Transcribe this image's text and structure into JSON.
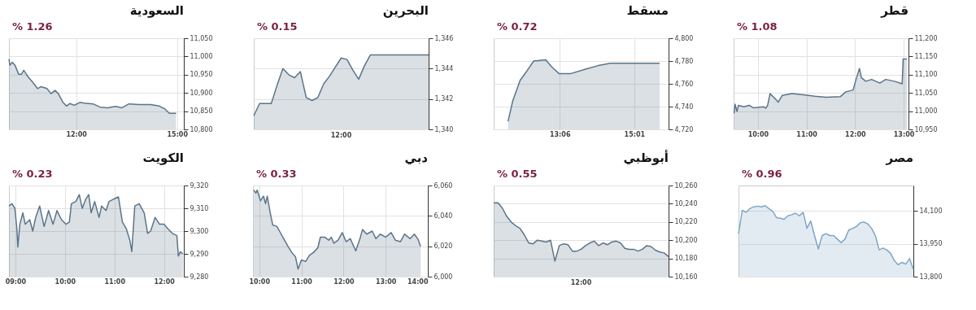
{
  "chart_data": [
    {
      "type": "area",
      "title": "السعودية",
      "annotations": [
        "% 1.26"
      ],
      "grid": true,
      "ylim": [
        10800,
        11050
      ],
      "yticks": [
        {
          "value": 10800,
          "label": "10,800"
        },
        {
          "value": 10850,
          "label": "10,850"
        },
        {
          "value": 10900,
          "label": "10,900"
        },
        {
          "value": 10950,
          "label": "10,950"
        },
        {
          "value": 11000,
          "label": "11,000"
        },
        {
          "value": 11050,
          "label": "11,050"
        }
      ],
      "xlim": [
        10,
        15.2
      ],
      "xticks": [
        {
          "value": 12,
          "label": "12:00"
        },
        {
          "value": 15,
          "label": "15:00"
        }
      ],
      "x": [
        10.0,
        10.03,
        10.1,
        10.18,
        10.29,
        10.37,
        10.44,
        10.57,
        10.7,
        10.85,
        10.95,
        11.13,
        11.25,
        11.37,
        11.47,
        11.6,
        11.71,
        11.81,
        11.94,
        12.11,
        12.24,
        12.5,
        12.71,
        12.93,
        13.18,
        13.35,
        13.57,
        13.87,
        14.21,
        14.47,
        14.64,
        14.77,
        14.97
      ],
      "series": [
        {
          "color": "#5b7489",
          "values": [
            10993,
            10976,
            10984,
            10976,
            10951,
            10951,
            10962,
            10944,
            10930,
            10912,
            10917,
            10912,
            10898,
            10907,
            10898,
            10875,
            10864,
            10871,
            10866,
            10874,
            10872,
            10870,
            10861,
            10859,
            10863,
            10859,
            10870,
            10868,
            10868,
            10864,
            10856,
            10844,
            10844
          ]
        }
      ]
    },
    {
      "type": "area",
      "title": "البحرين",
      "annotations": [
        "% 0.15",
        "12:00"
      ],
      "grid": "y",
      "ylim": [
        1340,
        1346
      ],
      "yticks": [
        {
          "value": 1340,
          "label": "1,340"
        },
        {
          "value": 1342,
          "label": "1,342"
        },
        {
          "value": 1344,
          "label": "1,344"
        },
        {
          "value": 1346,
          "label": "1,346"
        }
      ],
      "categories": [
        null,
        null,
        null,
        null,
        null,
        null,
        null,
        null,
        null,
        null,
        null,
        null,
        null,
        null,
        null,
        null,
        null,
        null,
        null,
        null,
        null,
        null,
        null,
        null,
        null,
        null,
        null,
        null,
        null,
        null,
        null
      ],
      "series": [
        {
          "color": "#5b7489",
          "values": [
            1340.9,
            1341.7,
            1341.7,
            1341.7,
            1342.9,
            1344.0,
            1343.6,
            1343.4,
            1343.8,
            1342.1,
            1341.9,
            1342.1,
            1343.0,
            1343.5,
            1344.1,
            1344.7,
            1344.6,
            1343.9,
            1343.3,
            1344.2,
            1344.9,
            1344.9,
            1344.9,
            1344.9,
            1344.9,
            1344.9,
            1344.9,
            1344.9,
            1344.9,
            1344.9,
            1344.9
          ]
        }
      ]
    },
    {
      "type": "area",
      "title": "مسقط",
      "annotations": [
        "% 0.72"
      ],
      "grid": true,
      "ylim": [
        4720,
        4800
      ],
      "yticks": [
        {
          "value": 4720,
          "label": "4,720"
        },
        {
          "value": 4740,
          "label": "4,740"
        },
        {
          "value": 4760,
          "label": "4,760"
        },
        {
          "value": 4780,
          "label": "4,780"
        },
        {
          "value": 4800,
          "label": "4,800"
        }
      ],
      "xlim": [
        11.4,
        15.9
      ],
      "xticks": [
        {
          "value": 13.1,
          "label": "13:06"
        },
        {
          "value": 15.0167,
          "label": "15:01"
        }
      ],
      "x": [
        11.77,
        11.89,
        12.08,
        12.27,
        12.43,
        12.74,
        12.89,
        13.08,
        13.39,
        13.78,
        14.09,
        14.4,
        15.67
      ],
      "series": [
        {
          "color": "#5b7489",
          "values": [
            4727,
            4745,
            4763,
            4772,
            4780,
            4781,
            4775,
            4769,
            4769,
            4773,
            4776,
            4778,
            4778
          ]
        }
      ]
    },
    {
      "type": "area",
      "title": "قطر",
      "annotations": [
        "% 1.08"
      ],
      "grid": true,
      "ylim": [
        10950,
        11200
      ],
      "yticks": [
        {
          "value": 10950,
          "label": "10,950"
        },
        {
          "value": 11000,
          "label": "11,000"
        },
        {
          "value": 11050,
          "label": "11,050"
        },
        {
          "value": 11100,
          "label": "11,100"
        },
        {
          "value": 11150,
          "label": "11,150"
        },
        {
          "value": 11200,
          "label": "11,200"
        }
      ],
      "xlim": [
        9.5,
        13.1
      ],
      "xticks": [
        {
          "value": 10,
          "label": "10:00"
        },
        {
          "value": 11,
          "label": "11:00"
        },
        {
          "value": 12,
          "label": "12:00"
        },
        {
          "value": 13,
          "label": "13:00"
        }
      ],
      "x": [
        9.51,
        9.53,
        9.57,
        9.6,
        9.71,
        9.82,
        9.91,
        10.12,
        10.16,
        10.2,
        10.25,
        10.35,
        10.42,
        10.5,
        10.7,
        10.94,
        11.17,
        11.4,
        11.7,
        11.81,
        11.96,
        12.02,
        12.09,
        12.13,
        12.22,
        12.34,
        12.51,
        12.63,
        12.81,
        12.97,
        12.99,
        13.07
      ],
      "series": [
        {
          "color": "#5b7489",
          "values": [
            10994,
            11019,
            10999,
            11016,
            11012,
            11016,
            11009,
            11012,
            11008,
            11016,
            11048,
            11035,
            11025,
            11043,
            11048,
            11045,
            11041,
            11038,
            11040,
            11053,
            11058,
            11087,
            11117,
            11092,
            11082,
            11087,
            11077,
            11087,
            11082,
            11075,
            11143,
            11143
          ]
        }
      ]
    },
    {
      "type": "area",
      "title": "الكويت",
      "annotations": [
        "% 0.23"
      ],
      "grid": true,
      "ylim": [
        9280,
        9320
      ],
      "yticks": [
        {
          "value": 9280,
          "label": "9,280"
        },
        {
          "value": 9290,
          "label": "9,290"
        },
        {
          "value": 9300,
          "label": "9,300"
        },
        {
          "value": 9310,
          "label": "9,310"
        },
        {
          "value": 9320,
          "label": "9,320"
        }
      ],
      "xlim": [
        8.87,
        12.4
      ],
      "xticks": [
        {
          "value": 9,
          "label": "09:00"
        },
        {
          "value": 10,
          "label": "10:00"
        },
        {
          "value": 11,
          "label": "11:00"
        },
        {
          "value": 12,
          "label": "12:00"
        }
      ],
      "x": [
        8.87,
        8.93,
        8.99,
        9.03,
        9.05,
        9.09,
        9.15,
        9.2,
        9.29,
        9.35,
        9.41,
        9.49,
        9.58,
        9.67,
        9.76,
        9.84,
        9.93,
        10.02,
        10.09,
        10.13,
        10.22,
        10.29,
        10.35,
        10.42,
        10.48,
        10.53,
        10.6,
        10.69,
        10.74,
        10.83,
        10.89,
        10.98,
        11.08,
        11.16,
        11.24,
        11.31,
        11.35,
        11.41,
        11.5,
        11.6,
        11.67,
        11.73,
        11.82,
        11.91,
        12.0,
        12.08,
        12.17,
        12.26,
        12.29,
        12.33,
        12.38
      ],
      "series": [
        {
          "color": "#5b7489",
          "values": [
            9311,
            9312,
            9310,
            9301,
            9293,
            9303,
            9308,
            9303,
            9305,
            9300,
            9306,
            9311,
            9302,
            9309,
            9303,
            9309,
            9305,
            9303,
            9304,
            9312,
            9313,
            9316,
            9310,
            9314,
            9316,
            9308,
            9313,
            9306,
            9311,
            9309,
            9313,
            9314,
            9315,
            9304,
            9301,
            9296,
            9291,
            9311,
            9312,
            9308,
            9299,
            9300,
            9306,
            9303,
            9303,
            9301,
            9299,
            9298,
            9289,
            9291,
            9290
          ]
        }
      ]
    },
    {
      "type": "area",
      "title": "دبي",
      "annotations": [
        "% 0.33"
      ],
      "grid": true,
      "ylim": [
        6000,
        6060
      ],
      "yticks": [
        {
          "value": 6000,
          "label": "6,000"
        },
        {
          "value": 6020,
          "label": "6,020"
        },
        {
          "value": 6040,
          "label": "6,040"
        },
        {
          "value": 6060,
          "label": "6,060"
        }
      ],
      "xlim": [
        9.85,
        14.0
      ],
      "xticks": [
        {
          "value": 10,
          "label": "10:00"
        },
        {
          "value": 11,
          "label": "11:00"
        },
        {
          "value": 12,
          "label": "12:00"
        },
        {
          "value": 13,
          "label": "13:00"
        },
        {
          "value": 14,
          "label": "14:00"
        }
      ],
      "x": [
        9.87,
        9.92,
        9.95,
        10.03,
        10.1,
        10.15,
        10.19,
        10.26,
        10.32,
        10.42,
        10.48,
        10.58,
        10.68,
        10.77,
        10.86,
        10.92,
        11.0,
        11.1,
        11.19,
        11.29,
        11.39,
        11.45,
        11.55,
        11.65,
        11.71,
        11.77,
        11.87,
        11.97,
        12.06,
        12.16,
        12.29,
        12.39,
        12.45,
        12.55,
        12.68,
        12.77,
        12.87,
        13.0,
        13.13,
        13.23,
        13.35,
        13.45,
        13.58,
        13.68,
        13.76,
        13.83
      ],
      "series": [
        {
          "color": "#5b7489",
          "values": [
            6057,
            6055,
            6057,
            6050,
            6053,
            6048,
            6053,
            6042,
            6034,
            6033,
            6030,
            6025,
            6020,
            6016,
            6013,
            6005,
            6011,
            6010,
            6014,
            6016,
            6019,
            6026,
            6026,
            6024,
            6026,
            6022,
            6024,
            6029,
            6023,
            6025,
            6017,
            6025,
            6031,
            6028,
            6030,
            6025,
            6028,
            6026,
            6029,
            6024,
            6023,
            6028,
            6025,
            6028,
            6025,
            6020
          ]
        }
      ]
    },
    {
      "type": "area",
      "title": "أبوظبي",
      "annotations": [
        "% 0.55",
        "12:00"
      ],
      "grid": "y",
      "ylim": [
        10160,
        10260
      ],
      "yticks": [
        {
          "value": 10160,
          "label": "10,160"
        },
        {
          "value": 10180,
          "label": "10,180"
        },
        {
          "value": 10200,
          "label": "10,200"
        },
        {
          "value": 10220,
          "label": "10,220"
        },
        {
          "value": 10240,
          "label": "10,240"
        },
        {
          "value": 10260,
          "label": "10,260"
        }
      ],
      "categories": [
        null,
        null,
        null,
        null,
        null,
        null,
        null,
        null,
        null,
        null,
        null,
        null,
        null,
        null,
        null,
        null,
        null,
        null,
        null,
        null,
        null,
        null,
        null,
        null,
        null,
        null,
        null,
        null,
        null,
        null,
        null,
        null,
        null,
        null,
        null,
        null,
        null,
        null,
        null,
        null,
        null
      ],
      "series": [
        {
          "color": "#5b7489",
          "values": [
            10241,
            10241,
            10235,
            10226,
            10220,
            10216,
            10213,
            10206,
            10197,
            10196,
            10200,
            10199,
            10198,
            10200,
            10177,
            10194,
            10196,
            10195,
            10188,
            10188,
            10190,
            10194,
            10197,
            10199,
            10194,
            10197,
            10195,
            10198,
            10199,
            10197,
            10191,
            10190,
            10190,
            10188,
            10190,
            10194,
            10193,
            10189,
            10187,
            10186,
            10182
          ]
        }
      ]
    },
    {
      "type": "area",
      "title": "مصر",
      "annotations": [
        "% 0.96"
      ],
      "grid": "y",
      "tick_labels": "y",
      "ylim": [
        13800,
        14215
      ],
      "yticks": [
        {
          "value": 13800,
          "label": "13,800"
        },
        {
          "value": 13950,
          "label": "13,950"
        },
        {
          "value": 14100,
          "label": "14,100"
        }
      ],
      "categories": [
        null,
        null,
        null,
        null,
        null,
        null,
        null,
        null,
        null,
        null,
        null,
        null,
        null,
        null,
        null,
        null,
        null,
        null,
        null,
        null,
        null,
        null,
        null,
        null,
        null,
        null,
        null,
        null,
        null,
        null,
        null,
        null,
        null,
        null,
        null,
        null,
        null,
        null,
        null,
        null,
        null,
        null,
        null,
        null,
        null,
        null,
        null
      ],
      "series": [
        {
          "color": "#7ea6c6",
          "values": [
            13996,
            14102,
            14093,
            14110,
            14118,
            14121,
            14118,
            14123,
            14110,
            14098,
            14069,
            14066,
            14061,
            14077,
            14082,
            14089,
            14077,
            14093,
            14020,
            14053,
            13987,
            13926,
            13987,
            13996,
            13987,
            13987,
            13971,
            13955,
            13971,
            14012,
            14020,
            14028,
            14045,
            14049,
            14040,
            14020,
            13987,
            13922,
            13930,
            13922,
            13906,
            13873,
            13854,
            13865,
            13857,
            13882,
            13833
          ]
        }
      ]
    }
  ]
}
